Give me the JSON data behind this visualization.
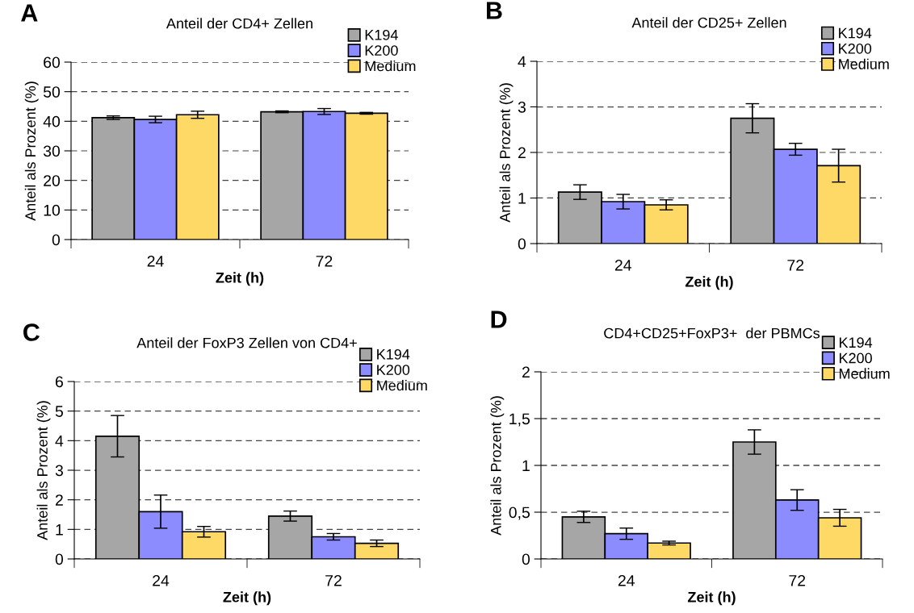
{
  "chart_data": [
    {
      "type": "bar",
      "title": "Anteil der CD4+ Zellen",
      "annotations": [
        "A"
      ],
      "xlabel": "Zeit (h)",
      "ylabel": "Anteil als Prozent (%)",
      "categories": [
        "24",
        "72"
      ],
      "ylim": [
        0,
        60
      ],
      "yticks": [
        0,
        10,
        20,
        30,
        40,
        50,
        60
      ],
      "grid": "y",
      "legend": "top right",
      "series": [
        {
          "name": "K194",
          "color": "#a6a6a6",
          "values": [
            41.2,
            43.2
          ],
          "errors": [
            0.6,
            0.3
          ]
        },
        {
          "name": "K200",
          "color": "#8c8cff",
          "values": [
            40.6,
            43.3
          ],
          "errors": [
            1.1,
            1.0
          ]
        },
        {
          "name": "Medium",
          "color": "#ffd966",
          "values": [
            42.2,
            42.7
          ],
          "errors": [
            1.2,
            0.3
          ]
        }
      ]
    },
    {
      "type": "bar",
      "title": "Anteil der CD25+ Zellen",
      "annotations": [
        "B"
      ],
      "xlabel": "Zeit (h)",
      "ylabel": "Anteil als Prozent (%)",
      "categories": [
        "24",
        "72"
      ],
      "ylim": [
        0,
        4
      ],
      "yticks": [
        0,
        1,
        2,
        3,
        4
      ],
      "grid": "y",
      "legend": "top right",
      "series": [
        {
          "name": "K194",
          "color": "#a6a6a6",
          "values": [
            1.13,
            2.75
          ],
          "errors": [
            0.16,
            0.32
          ]
        },
        {
          "name": "K200",
          "color": "#8c8cff",
          "values": [
            0.92,
            2.07
          ],
          "errors": [
            0.16,
            0.13
          ]
        },
        {
          "name": "Medium",
          "color": "#ffd966",
          "values": [
            0.85,
            1.71
          ],
          "errors": [
            0.11,
            0.36
          ]
        }
      ]
    },
    {
      "type": "bar",
      "title": "Anteil der FoxP3 Zellen von CD4+",
      "annotations": [
        "C"
      ],
      "xlabel": "Zeit (h)",
      "ylabel": "Anteil als Prozent (%)",
      "categories": [
        "24",
        "72"
      ],
      "ylim": [
        0,
        6
      ],
      "yticks": [
        0,
        1,
        2,
        3,
        4,
        5,
        6
      ],
      "grid": "y",
      "legend": "top right",
      "series": [
        {
          "name": "K194",
          "color": "#a6a6a6",
          "values": [
            4.15,
            1.45
          ],
          "errors": [
            0.7,
            0.17
          ]
        },
        {
          "name": "K200",
          "color": "#8c8cff",
          "values": [
            1.6,
            0.75
          ],
          "errors": [
            0.56,
            0.11
          ]
        },
        {
          "name": "Medium",
          "color": "#ffd966",
          "values": [
            0.92,
            0.53
          ],
          "errors": [
            0.18,
            0.11
          ]
        }
      ]
    },
    {
      "type": "bar",
      "title": "CD4+CD25+FoxP3+  der PBMCs",
      "annotations": [
        "D"
      ],
      "xlabel": "Zeit (h)",
      "ylabel": "Anteil als Prozent (%)",
      "categories": [
        "24",
        "72"
      ],
      "ylim": [
        0,
        2
      ],
      "yticks": [
        0,
        {
          "value": 0.5,
          "label": "0,5"
        },
        1,
        {
          "value": 1.5,
          "label": "1,5"
        },
        2
      ],
      "grid": "y",
      "legend": "top right",
      "series": [
        {
          "name": "K194",
          "color": "#a6a6a6",
          "values": [
            0.45,
            1.25
          ],
          "errors": [
            0.06,
            0.13
          ]
        },
        {
          "name": "K200",
          "color": "#8c8cff",
          "values": [
            0.27,
            0.63
          ],
          "errors": [
            0.06,
            0.11
          ]
        },
        {
          "name": "Medium",
          "color": "#ffd966",
          "values": [
            0.17,
            0.44
          ],
          "errors": [
            0.02,
            0.09
          ]
        }
      ]
    }
  ]
}
